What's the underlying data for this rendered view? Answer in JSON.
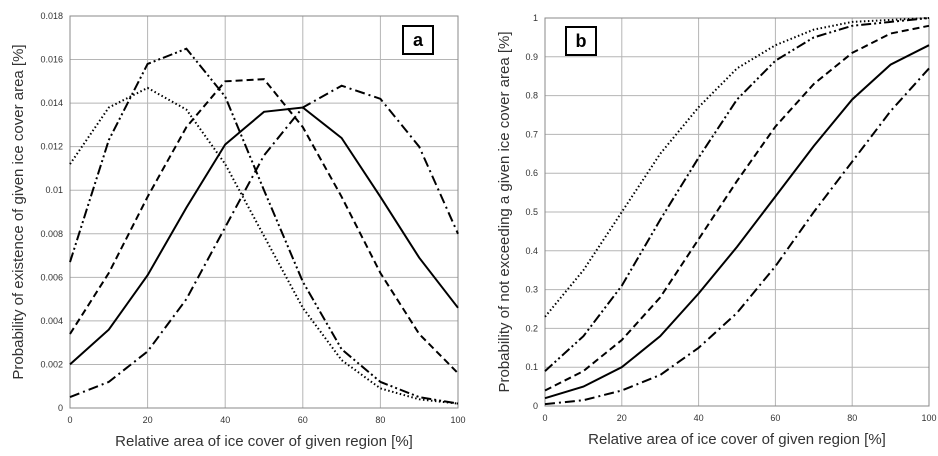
{
  "chart_data": [
    {
      "panel": "a",
      "type": "line",
      "xlabel": "Relative area of ice cover of given region [%]",
      "ylabel": "Probability of existence of given ice cover area [%]",
      "xlim": [
        0,
        100
      ],
      "ylim": [
        0,
        0.018
      ],
      "xticks": [
        "0",
        "20",
        "40",
        "60",
        "80",
        "100"
      ],
      "yticks": [
        "0",
        "0.002",
        "0.004",
        "0.006",
        "0.008",
        "0.01",
        "0.012",
        "0.014",
        "0.016",
        "0.018"
      ],
      "grid": true,
      "x": [
        0,
        10,
        20,
        30,
        40,
        50,
        60,
        70,
        80,
        90,
        100
      ],
      "series": [
        {
          "dash": "dotted",
          "values": [
            0.0112,
            0.0138,
            0.0147,
            0.0137,
            0.0112,
            0.0079,
            0.0046,
            0.0022,
            0.0009,
            0.0004,
            0.0002
          ]
        },
        {
          "dash": "dash-dot-dot",
          "values": [
            0.0067,
            0.0123,
            0.0158,
            0.0165,
            0.0143,
            0.01,
            0.0058,
            0.0027,
            0.0012,
            0.0005,
            0.0002
          ]
        },
        {
          "dash": "dashed",
          "values": [
            0.0034,
            0.0062,
            0.0097,
            0.0129,
            0.015,
            0.0151,
            0.0129,
            0.0097,
            0.0062,
            0.0034,
            0.0016
          ]
        },
        {
          "dash": "solid",
          "values": [
            0.002,
            0.0036,
            0.0061,
            0.0092,
            0.0121,
            0.0136,
            0.0138,
            0.0124,
            0.0097,
            0.0069,
            0.0046
          ]
        },
        {
          "dash": "dash-dot",
          "values": [
            0.0005,
            0.0012,
            0.0026,
            0.005,
            0.0083,
            0.0116,
            0.0138,
            0.0148,
            0.0142,
            0.012,
            0.008
          ]
        }
      ]
    },
    {
      "panel": "b",
      "type": "line",
      "xlabel": "Relative area of ice cover of given region [%]",
      "ylabel": "Probability of not exceeding a given ice cover area  [%]",
      "xlim": [
        0,
        100
      ],
      "ylim": [
        0,
        1
      ],
      "xticks": [
        "0",
        "20",
        "40",
        "60",
        "80",
        "100"
      ],
      "yticks": [
        "0",
        "0.1",
        "0.2",
        "0.3",
        "0.4",
        "0.5",
        "0.6",
        "0.7",
        "0.8",
        "0.9",
        "1"
      ],
      "grid": true,
      "x": [
        0,
        10,
        20,
        30,
        40,
        50,
        60,
        70,
        80,
        90,
        100
      ],
      "series": [
        {
          "dash": "dotted",
          "values": [
            0.23,
            0.35,
            0.5,
            0.65,
            0.77,
            0.87,
            0.93,
            0.97,
            0.99,
            0.995,
            1.0
          ]
        },
        {
          "dash": "dash-dot-dot",
          "values": [
            0.09,
            0.18,
            0.31,
            0.48,
            0.64,
            0.79,
            0.89,
            0.95,
            0.98,
            0.99,
            1.0
          ]
        },
        {
          "dash": "dashed",
          "values": [
            0.04,
            0.09,
            0.17,
            0.28,
            0.43,
            0.58,
            0.72,
            0.83,
            0.91,
            0.96,
            0.98
          ]
        },
        {
          "dash": "solid",
          "values": [
            0.02,
            0.05,
            0.1,
            0.18,
            0.29,
            0.41,
            0.54,
            0.67,
            0.79,
            0.88,
            0.93
          ]
        },
        {
          "dash": "dash-dot",
          "values": [
            0.005,
            0.015,
            0.04,
            0.08,
            0.15,
            0.24,
            0.36,
            0.5,
            0.63,
            0.76,
            0.87
          ]
        }
      ]
    }
  ]
}
